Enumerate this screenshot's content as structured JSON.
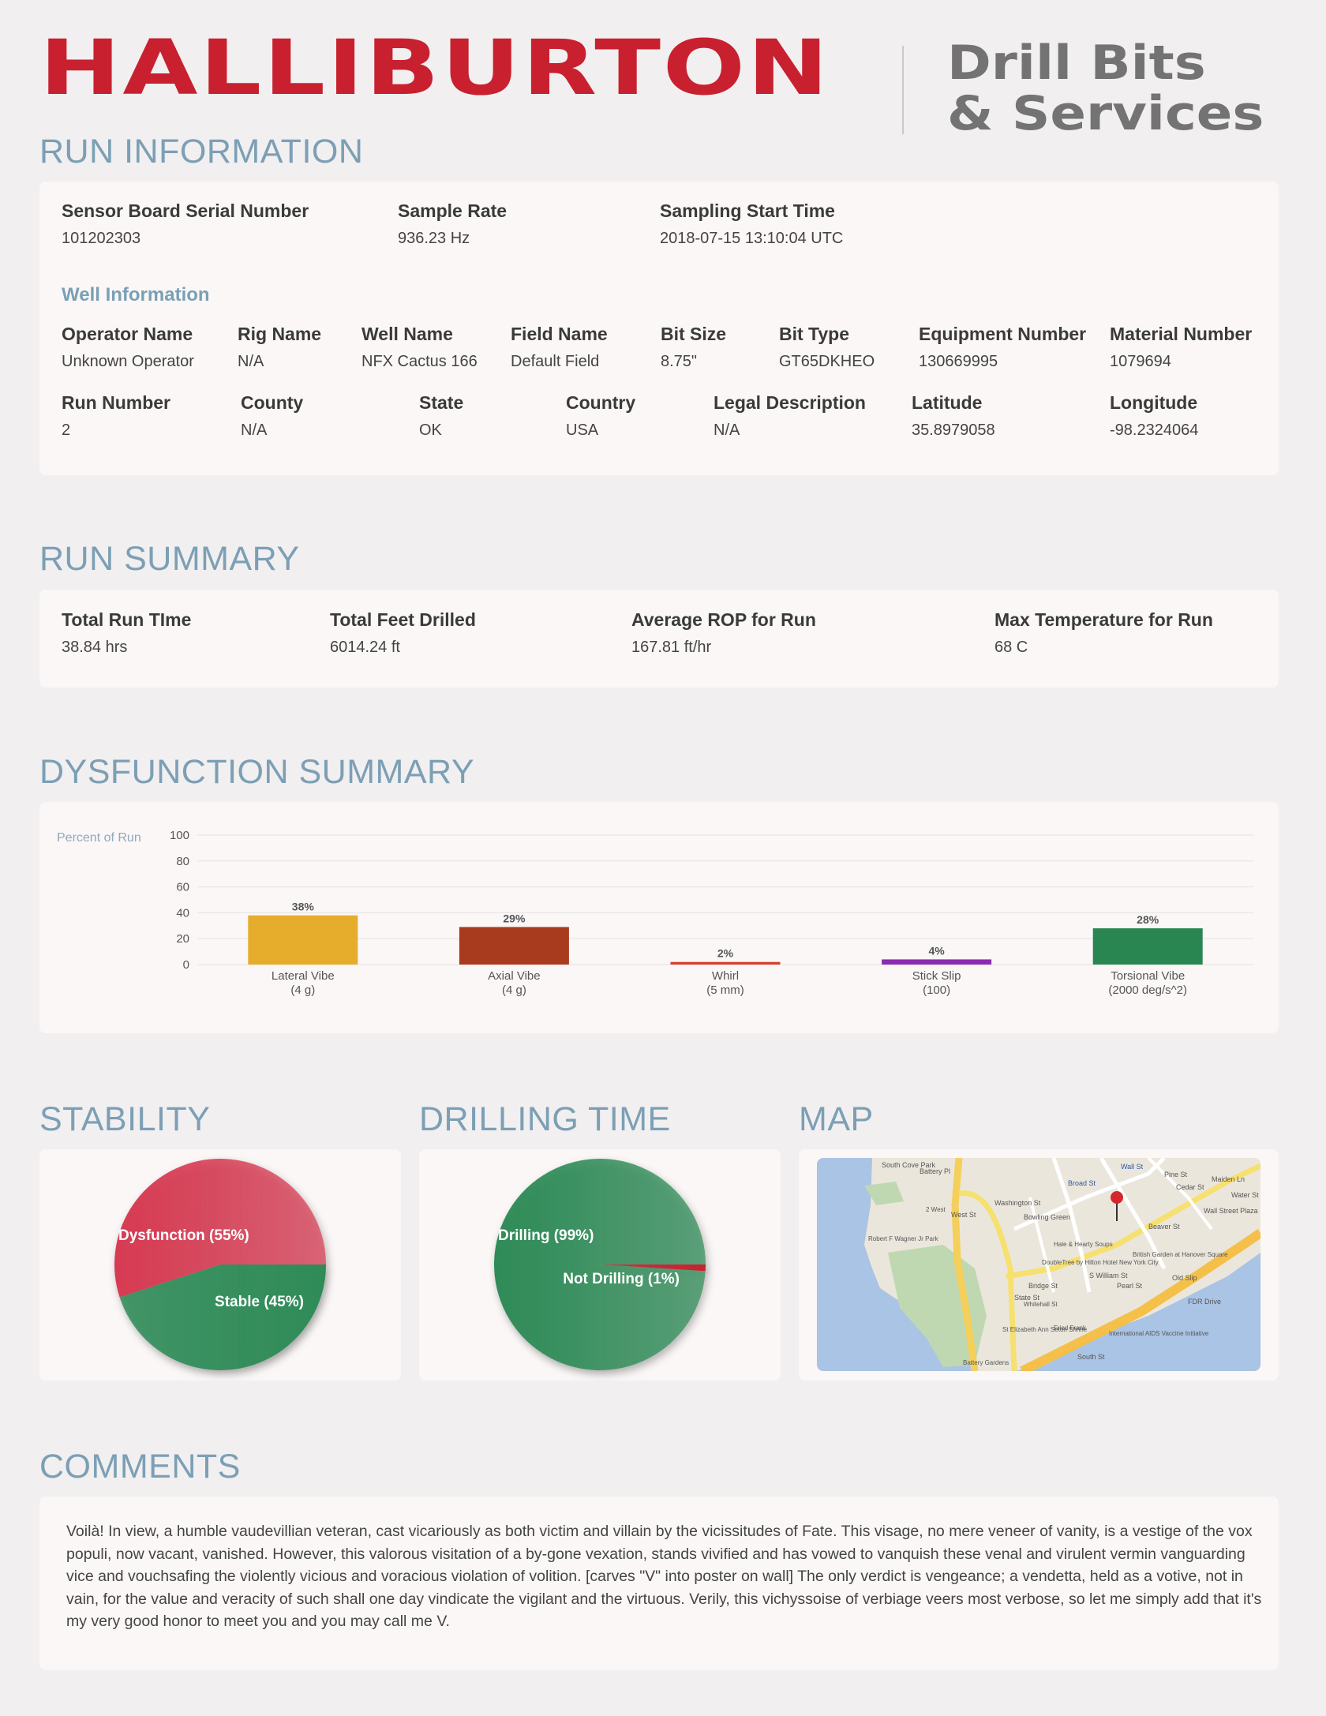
{
  "header": {
    "logo_text": "HALLIBURTON",
    "brand_line1": "Drill Bits",
    "brand_line2": "& Services",
    "brand_color": "#c8202f"
  },
  "run_information": {
    "title": "RUN INFORMATION",
    "sensor_label": "Sensor Board Serial Number",
    "sensor_value": "101202303",
    "sample_rate_label": "Sample Rate",
    "sample_rate_value": "936.23 Hz",
    "start_time_label": "Sampling Start Time",
    "start_time_value": "2018-07-15 13:10:04 UTC",
    "well_info_title": "Well Information",
    "row1": [
      {
        "label": "Operator Name",
        "value": "Unknown Operator"
      },
      {
        "label": "Rig Name",
        "value": "N/A"
      },
      {
        "label": "Well Name",
        "value": "NFX Cactus 166"
      },
      {
        "label": "Field Name",
        "value": "Default Field"
      },
      {
        "label": "Bit Size",
        "value": "8.75\""
      },
      {
        "label": "Bit Type",
        "value": "GT65DKHEO"
      },
      {
        "label": "Equipment Number",
        "value": "130669995"
      },
      {
        "label": "Material Number",
        "value": "1079694"
      }
    ],
    "row2": [
      {
        "label": "Run Number",
        "value": "2"
      },
      {
        "label": "County",
        "value": "N/A"
      },
      {
        "label": "State",
        "value": "OK"
      },
      {
        "label": "Country",
        "value": "USA"
      },
      {
        "label": "Legal Description",
        "value": "N/A"
      },
      {
        "label": "Latitude",
        "value": "35.8979058"
      },
      {
        "label": "Longitude",
        "value": "-98.2324064"
      }
    ]
  },
  "run_summary": {
    "title": "RUN SUMMARY",
    "items": [
      {
        "label": "Total Run TIme",
        "value": "38.84 hrs"
      },
      {
        "label": "Total Feet Drilled",
        "value": "6014.24 ft"
      },
      {
        "label": "Average ROP for Run",
        "value": "167.81 ft/hr"
      },
      {
        "label": "Max Temperature for Run",
        "value": "68 C"
      }
    ]
  },
  "dysfunction_summary": {
    "title": "DYSFUNCTION SUMMARY"
  },
  "stability": {
    "title": "STABILITY"
  },
  "drilling_time": {
    "title": "DRILLING TIME"
  },
  "map": {
    "title": "MAP"
  },
  "comments": {
    "title": "COMMENTS",
    "text": "Voilà! In view, a humble vaudevillian veteran, cast vicariously as both victim and villain by the vicissitudes of Fate. This visage, no mere veneer of vanity, is a vestige of the vox populi, now vacant, vanished. However, this valorous visitation of a by-gone vexation, stands vivified and has vowed to vanquish these venal and virulent vermin vanguarding vice and vouchsafing the violently vicious and voracious violation of volition. [carves \"V\" into poster on wall] The only verdict is vengeance; a vendetta, held as a votive, not in vain, for the value and veracity of such shall one day vindicate the vigilant and the virtuous. Verily, this vichyssoise of verbiage veers most verbose, so let me simply add that it's my very good honor to meet you and you may call me V."
  },
  "chart_data": [
    {
      "type": "bar",
      "ylabel": "Percent of Run",
      "ylim": [
        0,
        100
      ],
      "yticks": [
        "0",
        "20",
        "40",
        "60",
        "80",
        "100"
      ],
      "grid": true,
      "categories": [
        "Lateral Vibe",
        "Axial Vibe",
        "Whirl",
        "Stick Slip",
        "Torsional Vibe"
      ],
      "category_units": [
        "(4 g)",
        "(4 g)",
        "(5 mm)",
        "(100)",
        "(2000 deg/s^2)"
      ],
      "values": [
        38,
        29,
        2,
        4,
        28
      ],
      "data_labels": [
        "38%",
        "29%",
        "2%",
        "4%",
        "28%"
      ],
      "colors": [
        "#e6ad2d",
        "#a83b1e",
        "#d4402f",
        "#8b2bb0",
        "#2a8650"
      ]
    },
    {
      "type": "pie",
      "labels": [
        "Dysfunction",
        "Stable"
      ],
      "values": [
        55,
        45
      ],
      "data_labels": [
        "Dysfunction (55%)",
        "Stable (45%)"
      ],
      "colors": [
        "#d73a52",
        "#2e8b57"
      ]
    },
    {
      "type": "pie",
      "labels": [
        "Drilling",
        "Not Drilling"
      ],
      "values": [
        99,
        1
      ],
      "data_labels": [
        "Drilling (99%)",
        "Not Drilling (1%)"
      ],
      "colors": [
        "#2e8b57",
        "#c8202f"
      ]
    }
  ],
  "map_labels": [
    "South Cove Park",
    "Battery Pl",
    "West St",
    "Washington St",
    "Bowling Green",
    "Broad St",
    "Wall St",
    "Pine St",
    "Cedar St",
    "Maiden Ln",
    "Water St",
    "Beaver St",
    "Wall Street Plaza",
    "Hale & Hearty Soups",
    "Robert F Wagner Jr Park",
    "DoubleTree by Hilton Hotel New York City",
    "British Garden at Hanover Square",
    "Old Slip",
    "FDR Drive",
    "S William St",
    "Pearl St",
    "State St",
    "Bridge St",
    "Whitehall St",
    "St Elizabeth Ann Seton Shrine",
    "Fried Frank",
    "International AIDS Vaccine Initiative",
    "South St",
    "Battery Gardens",
    "2 West"
  ]
}
